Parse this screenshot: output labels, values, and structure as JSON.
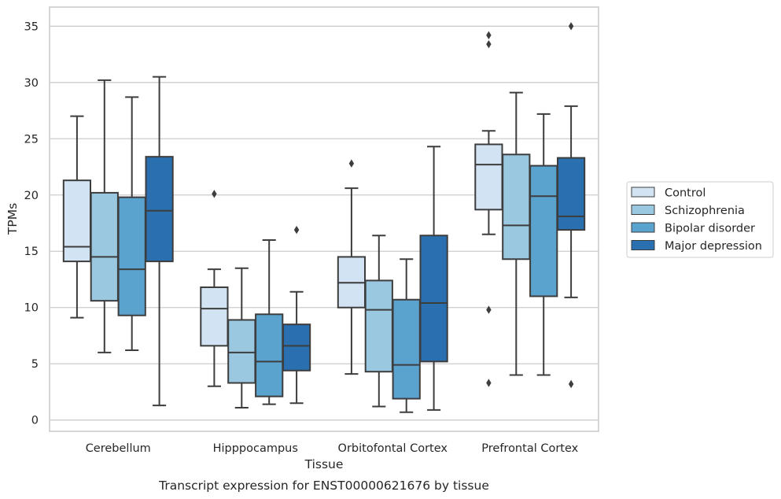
{
  "caption": "Transcript expression for ENST00000621676 by tissue",
  "chart_data": {
    "type": "box",
    "title": "",
    "xlabel": "Tissue",
    "ylabel": "TPMs",
    "ylim": [
      -1,
      36.7
    ],
    "yticks": [
      0,
      5,
      10,
      15,
      20,
      25,
      30,
      35
    ],
    "grid": true,
    "legend_position": "right",
    "categories": [
      "Cerebellum",
      "Hipppocampus",
      "Orbitofontal Cortex",
      "Prefrontal Cortex"
    ],
    "series": [
      {
        "name": "Control",
        "color": "#d2e3f3",
        "boxes": [
          {
            "whislo": 9.1,
            "q1": 14.1,
            "med": 15.4,
            "q3": 21.3,
            "whishi": 27.0,
            "fliers": []
          },
          {
            "whislo": 3.0,
            "q1": 6.6,
            "med": 9.9,
            "q3": 11.8,
            "whishi": 13.4,
            "fliers": [
              20.1
            ]
          },
          {
            "whislo": 4.1,
            "q1": 10.0,
            "med": 12.2,
            "q3": 14.5,
            "whishi": 20.6,
            "fliers": [
              22.8
            ]
          },
          {
            "whislo": 16.5,
            "q1": 18.7,
            "med": 22.7,
            "q3": 24.5,
            "whishi": 25.7,
            "fliers": [
              34.2,
              33.4,
              9.8,
              3.3
            ]
          }
        ]
      },
      {
        "name": "Schizophrenia",
        "color": "#9ac8e0",
        "boxes": [
          {
            "whislo": 6.0,
            "q1": 10.6,
            "med": 14.5,
            "q3": 20.2,
            "whishi": 30.2,
            "fliers": []
          },
          {
            "whislo": 1.1,
            "q1": 3.3,
            "med": 6.0,
            "q3": 8.9,
            "whishi": 13.5,
            "fliers": []
          },
          {
            "whislo": 1.2,
            "q1": 4.3,
            "med": 9.8,
            "q3": 12.4,
            "whishi": 16.4,
            "fliers": []
          },
          {
            "whislo": 4.0,
            "q1": 14.3,
            "med": 17.3,
            "q3": 23.6,
            "whishi": 29.1,
            "fliers": []
          }
        ]
      },
      {
        "name": "Bipolar disorder",
        "color": "#5ba3cf",
        "boxes": [
          {
            "whislo": 6.2,
            "q1": 9.3,
            "med": 13.4,
            "q3": 19.8,
            "whishi": 28.7,
            "fliers": []
          },
          {
            "whislo": 1.4,
            "q1": 2.1,
            "med": 5.2,
            "q3": 9.4,
            "whishi": 16.0,
            "fliers": []
          },
          {
            "whislo": 0.7,
            "q1": 1.9,
            "med": 4.9,
            "q3": 10.7,
            "whishi": 14.3,
            "fliers": []
          },
          {
            "whislo": 4.0,
            "q1": 11.0,
            "med": 19.9,
            "q3": 22.6,
            "whishi": 27.2,
            "fliers": []
          }
        ]
      },
      {
        "name": "Major depression",
        "color": "#2a6fb0",
        "boxes": [
          {
            "whislo": 1.3,
            "q1": 14.1,
            "med": 18.6,
            "q3": 23.4,
            "whishi": 30.5,
            "fliers": []
          },
          {
            "whislo": 1.5,
            "q1": 4.4,
            "med": 6.6,
            "q3": 8.5,
            "whishi": 11.4,
            "fliers": [
              16.9
            ]
          },
          {
            "whislo": 0.9,
            "q1": 5.2,
            "med": 10.4,
            "q3": 16.4,
            "whishi": 24.3,
            "fliers": []
          },
          {
            "whislo": 10.9,
            "q1": 16.9,
            "med": 18.1,
            "q3": 23.3,
            "whishi": 27.9,
            "fliers": [
              35.0,
              3.2
            ]
          }
        ]
      }
    ]
  }
}
